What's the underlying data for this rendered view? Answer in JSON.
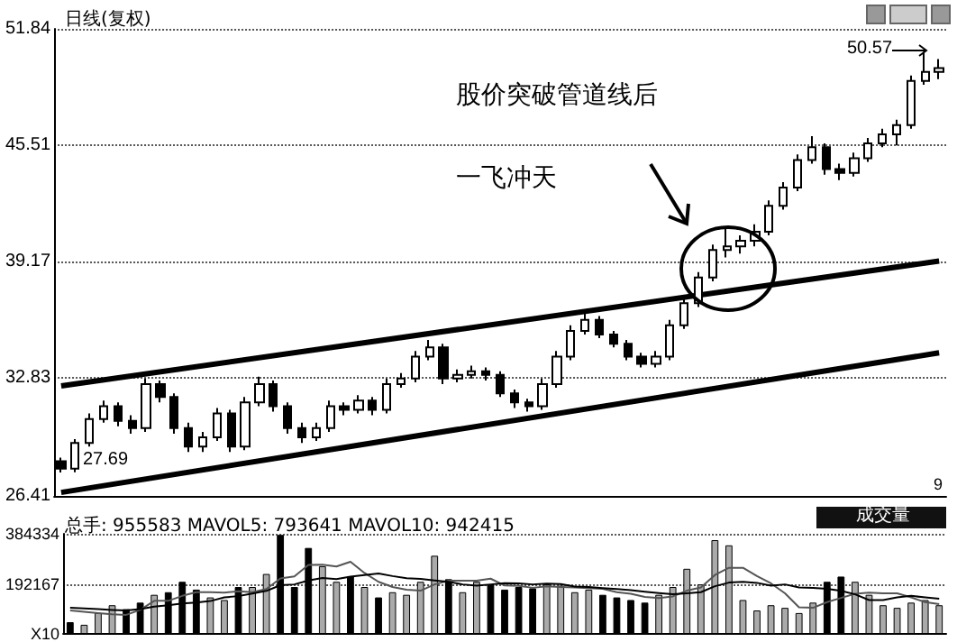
{
  "chart_data": [
    {
      "type": "candlestick",
      "title": "日线(复权)",
      "color": "#000000",
      "categories": [
        null,
        null,
        null,
        null,
        null,
        null,
        null,
        null,
        null,
        null,
        null,
        null,
        null,
        null,
        null,
        null,
        null,
        null,
        null,
        null,
        null,
        null,
        null,
        null,
        null,
        null,
        null,
        null,
        null,
        null,
        null,
        null,
        null,
        null,
        null,
        null,
        null,
        null,
        null,
        null,
        null,
        null,
        null,
        null,
        null,
        null,
        null,
        null,
        null,
        null,
        null,
        null,
        null,
        null,
        null,
        null,
        null,
        null,
        null,
        null,
        null,
        null,
        null
      ],
      "ohlc": [
        [
          28.3,
          28.5,
          27.69,
          27.9
        ],
        [
          27.9,
          29.5,
          27.7,
          29.3
        ],
        [
          29.3,
          30.9,
          29.1,
          30.6
        ],
        [
          30.6,
          31.6,
          30.4,
          31.3
        ],
        [
          31.3,
          31.5,
          30.2,
          30.5
        ],
        [
          30.5,
          30.8,
          29.8,
          30.1
        ],
        [
          30.1,
          32.8,
          29.9,
          32.5
        ],
        [
          32.5,
          32.7,
          31.5,
          31.8
        ],
        [
          31.8,
          32.0,
          29.8,
          30.1
        ],
        [
          30.1,
          30.4,
          28.8,
          29.1
        ],
        [
          29.1,
          29.9,
          28.8,
          29.6
        ],
        [
          29.6,
          31.2,
          29.4,
          30.9
        ],
        [
          30.9,
          31.1,
          28.8,
          29.1
        ],
        [
          29.1,
          31.8,
          28.9,
          31.5
        ],
        [
          31.5,
          32.9,
          31.3,
          32.5
        ],
        [
          32.5,
          32.7,
          31.0,
          31.3
        ],
        [
          31.3,
          31.5,
          29.8,
          30.1
        ],
        [
          30.1,
          30.4,
          29.3,
          29.6
        ],
        [
          29.6,
          30.4,
          29.4,
          30.1
        ],
        [
          30.1,
          31.6,
          29.9,
          31.3
        ],
        [
          31.3,
          31.5,
          30.8,
          31.1
        ],
        [
          31.1,
          31.9,
          30.9,
          31.6
        ],
        [
          31.6,
          31.8,
          30.8,
          31.1
        ],
        [
          31.1,
          32.8,
          30.9,
          32.5
        ],
        [
          32.5,
          33.1,
          32.3,
          32.8
        ],
        [
          32.8,
          34.3,
          32.6,
          34.0
        ],
        [
          34.0,
          34.9,
          33.8,
          34.5
        ],
        [
          34.5,
          34.7,
          32.5,
          32.8
        ],
        [
          32.8,
          33.3,
          32.6,
          33.0
        ],
        [
          33.0,
          33.5,
          32.8,
          33.2
        ],
        [
          33.2,
          33.4,
          32.7,
          33.0
        ],
        [
          33.0,
          33.2,
          31.8,
          32.0
        ],
        [
          32.0,
          32.2,
          31.2,
          31.5
        ],
        [
          31.5,
          31.7,
          31.0,
          31.3
        ],
        [
          31.3,
          32.8,
          31.1,
          32.5
        ],
        [
          32.5,
          34.3,
          32.3,
          34.0
        ],
        [
          34.0,
          35.7,
          33.8,
          35.4
        ],
        [
          35.4,
          36.5,
          35.2,
          36.0
        ],
        [
          36.0,
          36.2,
          35.0,
          35.2
        ],
        [
          35.2,
          35.4,
          34.5,
          34.7
        ],
        [
          34.7,
          34.9,
          33.8,
          34.0
        ],
        [
          34.0,
          34.2,
          33.4,
          33.6
        ],
        [
          33.6,
          34.3,
          33.4,
          34.0
        ],
        [
          34.0,
          36.0,
          33.8,
          35.7
        ],
        [
          35.7,
          37.2,
          35.5,
          36.9
        ],
        [
          36.9,
          38.6,
          36.7,
          38.3
        ],
        [
          38.3,
          40.1,
          38.1,
          39.8
        ],
        [
          39.8,
          41.0,
          39.4,
          40.0
        ],
        [
          40.0,
          40.6,
          39.6,
          40.3
        ],
        [
          40.3,
          41.2,
          40.0,
          40.8
        ],
        [
          40.8,
          42.5,
          40.6,
          42.2
        ],
        [
          42.2,
          43.5,
          42.0,
          43.2
        ],
        [
          43.2,
          45.0,
          43.0,
          44.7
        ],
        [
          44.7,
          46.0,
          44.5,
          45.4
        ],
        [
          45.4,
          45.6,
          43.9,
          44.2
        ],
        [
          44.2,
          44.5,
          43.6,
          44.0
        ],
        [
          44.0,
          45.1,
          43.8,
          44.8
        ],
        [
          44.8,
          45.9,
          44.6,
          45.6
        ],
        [
          45.6,
          46.4,
          45.4,
          46.1
        ],
        [
          46.1,
          46.9,
          45.5,
          46.6
        ],
        [
          46.6,
          49.3,
          46.4,
          49.0
        ],
        [
          49.0,
          50.57,
          48.8,
          49.5
        ],
        [
          49.5,
          50.2,
          49.1,
          49.7
        ]
      ],
      "series": [
        {
          "type": "line",
          "color": "#000000",
          "values": [
            32.4,
            null,
            null,
            null,
            null,
            null,
            null,
            null,
            null,
            null,
            null,
            null,
            null,
            null,
            null,
            null,
            null,
            null,
            null,
            null,
            null,
            null,
            null,
            null,
            null,
            null,
            null,
            null,
            null,
            null,
            null,
            null,
            null,
            null,
            null,
            null,
            null,
            null,
            null,
            null,
            null,
            null,
            null,
            null,
            null,
            null,
            null,
            null,
            null,
            null,
            null,
            null,
            null,
            null,
            null,
            null,
            null,
            null,
            null,
            null,
            null,
            null,
            39.2
          ]
        },
        {
          "type": "line",
          "color": "#000000",
          "values": [
            26.6,
            null,
            null,
            null,
            null,
            null,
            null,
            null,
            null,
            null,
            null,
            null,
            null,
            null,
            null,
            null,
            null,
            null,
            null,
            null,
            null,
            null,
            null,
            null,
            null,
            null,
            null,
            null,
            null,
            null,
            null,
            null,
            null,
            null,
            null,
            null,
            null,
            null,
            null,
            null,
            null,
            null,
            null,
            null,
            null,
            null,
            null,
            null,
            null,
            null,
            null,
            null,
            null,
            null,
            null,
            null,
            null,
            null,
            null,
            null,
            null,
            null,
            34.2
          ]
        }
      ],
      "ylim": [
        26.41,
        51.84
      ],
      "yticks": [
        26.41,
        32.83,
        39.17,
        45.51,
        51.84
      ],
      "grid": "y",
      "tick_labels": "y",
      "annotations": [
        "股价突破管道线后",
        "一飞冲天",
        "50.57",
        "27.69",
        "9"
      ]
    },
    {
      "type": "bar",
      "title": "总手: 955583 MAVOL5: 793641 MAVOL10: 942415",
      "categories": [
        null,
        null,
        null,
        null,
        null,
        null,
        null,
        null,
        null,
        null,
        null,
        null,
        null,
        null,
        null,
        null,
        null,
        null,
        null,
        null,
        null,
        null,
        null,
        null,
        null,
        null,
        null,
        null,
        null,
        null,
        null,
        null,
        null,
        null,
        null,
        null,
        null,
        null,
        null,
        null,
        null,
        null,
        null,
        null,
        null,
        null,
        null,
        null,
        null,
        null,
        null,
        null,
        null,
        null,
        null,
        null,
        null,
        null,
        null,
        null,
        null,
        null,
        null
      ],
      "series": [
        {
          "type": "bar",
          "values": [
            45000,
            35000,
            80000,
            110000,
            95000,
            120000,
            150000,
            160000,
            200000,
            170000,
            140000,
            130000,
            180000,
            180000,
            230000,
            380000,
            180000,
            330000,
            260000,
            200000,
            220000,
            180000,
            140000,
            160000,
            150000,
            200000,
            300000,
            210000,
            160000,
            200000,
            190000,
            170000,
            180000,
            175000,
            190000,
            185000,
            160000,
            170000,
            150000,
            140000,
            130000,
            120000,
            150000,
            180000,
            250000,
            190000,
            360000,
            340000,
            130000,
            90000,
            110000,
            100000,
            80000,
            120000,
            200000,
            220000,
            200000,
            150000,
            110000,
            100000,
            120000,
            130000,
            110000
          ],
          "colors": [
            "#000000",
            "#aaaaaa",
            "#aaaaaa",
            "#aaaaaa",
            "#000000",
            "#000000",
            "#aaaaaa",
            "#000000",
            "#000000",
            "#000000",
            "#aaaaaa",
            "#aaaaaa",
            "#000000",
            "#aaaaaa",
            "#aaaaaa",
            "#000000",
            "#000000",
            "#000000",
            "#aaaaaa",
            "#aaaaaa",
            "#000000",
            "#aaaaaa",
            "#000000",
            "#aaaaaa",
            "#aaaaaa",
            "#aaaaaa",
            "#aaaaaa",
            "#000000",
            "#aaaaaa",
            "#aaaaaa",
            "#000000",
            "#000000",
            "#000000",
            "#000000",
            "#aaaaaa",
            "#aaaaaa",
            "#aaaaaa",
            "#aaaaaa",
            "#000000",
            "#000000",
            "#000000",
            "#000000",
            "#aaaaaa",
            "#aaaaaa",
            "#aaaaaa",
            "#aaaaaa",
            "#aaaaaa",
            "#aaaaaa",
            "#aaaaaa",
            "#aaaaaa",
            "#aaaaaa",
            "#aaaaaa",
            "#aaaaaa",
            "#aaaaaa",
            "#000000",
            "#000000",
            "#aaaaaa",
            "#aaaaaa",
            "#aaaaaa",
            "#aaaaaa",
            "#aaaaaa",
            "#aaaaaa",
            "#aaaaaa"
          ]
        },
        {
          "type": "line",
          "color": "#555555",
          "values": [
            90000,
            85000,
            80000,
            75000,
            73000,
            92000,
            127000,
            127000,
            146000,
            160000,
            160000,
            158000,
            164000,
            160000,
            172000,
            213000,
            221000,
            265000,
            266000,
            259000,
            277000,
            234000,
            200000,
            180000,
            170000,
            166000,
            190000,
            204000,
            204000,
            204000,
            212000,
            186000,
            184000,
            177000,
            183000,
            180000,
            178000,
            176000,
            173000,
            160000,
            154000,
            142000,
            138000,
            144000,
            166000,
            178000,
            226000,
            254000,
            254000,
            222000,
            194000,
            156000,
            102000,
            100000,
            122000,
            138000,
            154000,
            158000,
            156000,
            156000,
            140000,
            122000,
            114000
          ]
        },
        {
          "type": "line",
          "color": "#000000",
          "values": [
            100000,
            98000,
            95000,
            92000,
            90000,
            95000,
            105000,
            110000,
            117000,
            120000,
            126000,
            140000,
            145000,
            155000,
            165000,
            187000,
            190000,
            205000,
            215000,
            210000,
            220000,
            226000,
            232000,
            222000,
            214000,
            211000,
            205000,
            200000,
            190000,
            185000,
            190000,
            195000,
            194000,
            190000,
            193000,
            191000,
            182000,
            180000,
            176000,
            172000,
            168000,
            162000,
            157000,
            152000,
            156000,
            160000,
            183000,
            197000,
            200000,
            196000,
            185000,
            190000,
            178000,
            177000,
            173000,
            165000,
            152000,
            130000,
            130000,
            140000,
            146000,
            140000,
            135000
          ]
        }
      ],
      "ylim": [
        0,
        384334
      ],
      "yticks": [
        {
          "value": 0,
          "label": "X10"
        },
        192167,
        384334
      ],
      "grid": "y",
      "tick_labels": "y",
      "annotations": [
        "成交量"
      ]
    }
  ]
}
